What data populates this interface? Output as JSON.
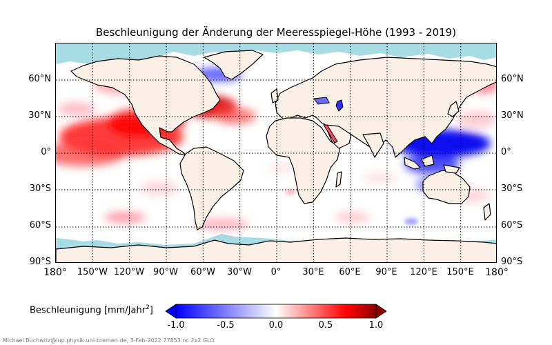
{
  "title": "Beschleunigung der Änderung der Meeresspiegel-Höhe (1993 - 2019)",
  "map": {
    "projection": "plate carree",
    "lat_labels": [
      "60°N",
      "30°N",
      "0°",
      "30°S",
      "60°S",
      "90°S"
    ],
    "lon_labels": [
      "180°",
      "150°W",
      "120°W",
      "90°W",
      "60°W",
      "30°W",
      "0°",
      "30°E",
      "60°E",
      "90°E",
      "120°E",
      "150°E",
      "180°"
    ],
    "grid": "dotted",
    "colors": {
      "land": "#faf0e6",
      "sea_ice": "#a8dce4",
      "coast": "#000000",
      "positive": "#ff0000",
      "negative": "#0000ff"
    },
    "patches": [
      {
        "region": "North Atlantic / Gulf Stream",
        "value": 0.9
      },
      {
        "region": "Tropical North Pacific",
        "value": 0.8
      },
      {
        "region": "Gulf of Mexico",
        "value": 0.7
      },
      {
        "region": "Western Tropical Pacific / Philippines",
        "value": -1.0
      },
      {
        "region": "Indonesia / North Australia",
        "value": -0.7
      },
      {
        "region": "Southern Ocean patches",
        "value": 0.4
      },
      {
        "region": "Labrador / Irminger Sea",
        "value": -0.4
      },
      {
        "region": "Caspian Sea",
        "value": -0.6
      },
      {
        "region": "Red Sea",
        "value": 0.6
      }
    ]
  },
  "colorbar": {
    "label_prefix": "Beschleunigung [mm/Jahr",
    "label_exp": "2",
    "label_suffix": "]",
    "ticks": [
      "-1.0",
      "-0.5",
      "0.0",
      "0.5",
      "1.0"
    ],
    "range": [
      -1.0,
      1.0
    ],
    "colors": [
      "#0000ff",
      "#ffffff",
      "#ff0000",
      "#8b0000"
    ]
  },
  "credit": "Michael.Buchwitz@iup.physik.uni-bremen.de, 3-Feb-2022 77853.nc 2x2 GLO"
}
